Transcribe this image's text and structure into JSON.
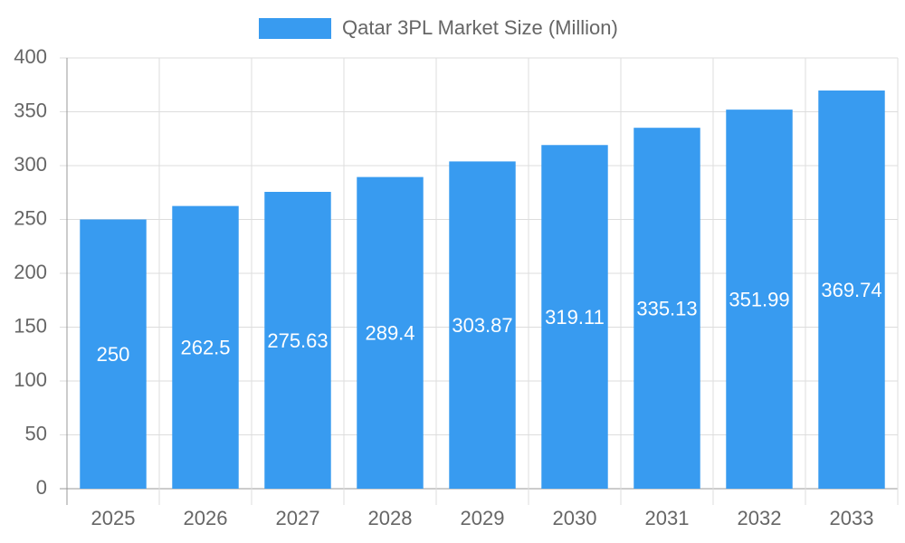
{
  "chart_data": {
    "type": "bar",
    "categories": [
      "2025",
      "2026",
      "2027",
      "2028",
      "2029",
      "2030",
      "2031",
      "2032",
      "2033"
    ],
    "series": [
      {
        "name": "Qatar 3PL Market Size (Million)",
        "color": "#389bf0",
        "values": [
          250,
          262.5,
          275.63,
          289.4,
          303.87,
          319.11,
          335.13,
          351.99,
          369.74
        ]
      }
    ],
    "ylim": [
      0,
      400
    ],
    "yticks": [
      0,
      50,
      100,
      150,
      200,
      250,
      300,
      350,
      400
    ],
    "grid": true,
    "legend": "top",
    "data_labels": true
  }
}
